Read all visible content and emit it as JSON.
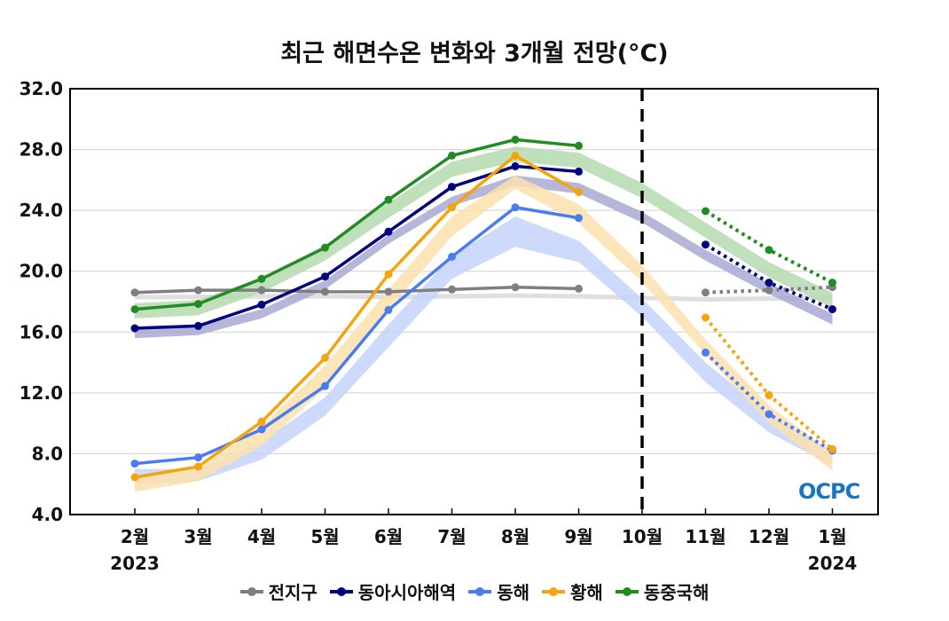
{
  "chart_data": {
    "type": "line",
    "title": "최근 해면수온 변화와 3개월 전망(°C)",
    "categories": [
      "2월",
      "3월",
      "4월",
      "5월",
      "6월",
      "7월",
      "8월",
      "9월",
      "10월",
      "11월",
      "12월",
      "1월"
    ],
    "year_labels": {
      "start": "2023",
      "end": "2024"
    },
    "ylim": [
      4.0,
      32.0
    ],
    "yticks": [
      "4.0",
      "8.0",
      "12.0",
      "16.0",
      "20.0",
      "24.0",
      "28.0",
      "32.0"
    ],
    "grid": true,
    "divider_category": "10월",
    "legend_position": "bottom",
    "series": [
      {
        "name": "전지구",
        "color": "#7f7f7f",
        "band_color": "#d9d9d9",
        "observed": [
          18.6,
          18.75,
          18.75,
          18.65,
          18.65,
          18.8,
          18.95,
          18.85,
          null,
          null,
          null,
          null
        ],
        "forecast": [
          null,
          null,
          null,
          null,
          null,
          null,
          null,
          null,
          null,
          18.6,
          18.75,
          18.95
        ],
        "band_low": [
          18.15,
          18.15,
          18.2,
          18.2,
          18.15,
          18.2,
          18.25,
          18.2,
          18.1,
          18.0,
          18.05,
          18.15
        ],
        "band_high": [
          18.45,
          18.45,
          18.5,
          18.5,
          18.45,
          18.5,
          18.55,
          18.5,
          18.4,
          18.3,
          18.35,
          18.45
        ]
      },
      {
        "name": "동아시아해역",
        "color": "#000080",
        "band_color": "#a9a9d4",
        "observed": [
          16.25,
          16.4,
          17.8,
          19.65,
          22.6,
          25.55,
          26.9,
          26.55,
          null,
          null,
          null,
          null
        ],
        "forecast": [
          null,
          null,
          null,
          null,
          null,
          null,
          null,
          null,
          null,
          21.75,
          19.25,
          17.5
        ],
        "band_low": [
          15.6,
          15.8,
          16.9,
          18.8,
          21.8,
          24.3,
          25.6,
          25.1,
          23.2,
          20.7,
          18.5,
          16.5
        ],
        "band_high": [
          16.2,
          16.4,
          17.5,
          19.4,
          22.4,
          24.9,
          26.3,
          25.8,
          23.9,
          21.4,
          19.2,
          17.2
        ]
      },
      {
        "name": "동해",
        "color": "#4a7bf0",
        "band_color": "#c4d3fa",
        "observed": [
          7.35,
          7.75,
          9.6,
          12.45,
          17.45,
          20.95,
          24.2,
          23.5,
          null,
          null,
          null,
          null
        ],
        "forecast": [
          null,
          null,
          null,
          null,
          null,
          null,
          null,
          null,
          null,
          14.65,
          10.6,
          8.2
        ],
        "band_low": [
          6.0,
          6.2,
          7.6,
          10.5,
          15.0,
          19.5,
          21.6,
          20.6,
          17.0,
          12.7,
          9.4,
          7.2
        ],
        "band_high": [
          7.0,
          7.0,
          8.8,
          11.7,
          16.5,
          21.0,
          23.6,
          22.0,
          18.2,
          14.0,
          10.6,
          8.2
        ]
      },
      {
        "name": "황해",
        "color": "#f5a40c",
        "band_color": "#fbe0ad",
        "observed": [
          6.45,
          7.15,
          10.1,
          14.3,
          19.8,
          24.2,
          27.6,
          25.2,
          null,
          null,
          null,
          null
        ],
        "forecast": [
          null,
          null,
          null,
          null,
          null,
          null,
          null,
          null,
          null,
          16.95,
          11.85,
          8.3
        ],
        "band_low": [
          5.5,
          6.2,
          8.5,
          12.3,
          17.5,
          22.3,
          25.4,
          23.2,
          19.3,
          14.5,
          10.0,
          6.9
        ],
        "band_high": [
          6.5,
          7.0,
          9.8,
          13.8,
          18.8,
          23.6,
          26.3,
          24.4,
          20.4,
          15.5,
          11.2,
          8.0
        ]
      },
      {
        "name": "동중국해",
        "color": "#228b22",
        "band_color": "#b5dbb0",
        "observed": [
          17.5,
          17.85,
          19.5,
          21.55,
          24.7,
          27.6,
          28.65,
          28.25,
          null,
          null,
          null,
          null
        ],
        "forecast": [
          null,
          null,
          null,
          null,
          null,
          null,
          null,
          null,
          null,
          23.95,
          21.4,
          19.25
        ],
        "band_low": [
          16.9,
          17.1,
          18.6,
          20.7,
          23.5,
          26.2,
          27.2,
          26.8,
          24.8,
          22.2,
          19.6,
          17.6
        ],
        "band_high": [
          17.9,
          18.1,
          19.6,
          21.7,
          24.5,
          27.2,
          28.2,
          27.8,
          25.8,
          23.2,
          20.6,
          18.6
        ]
      }
    ]
  },
  "logo_text": "OCPC"
}
